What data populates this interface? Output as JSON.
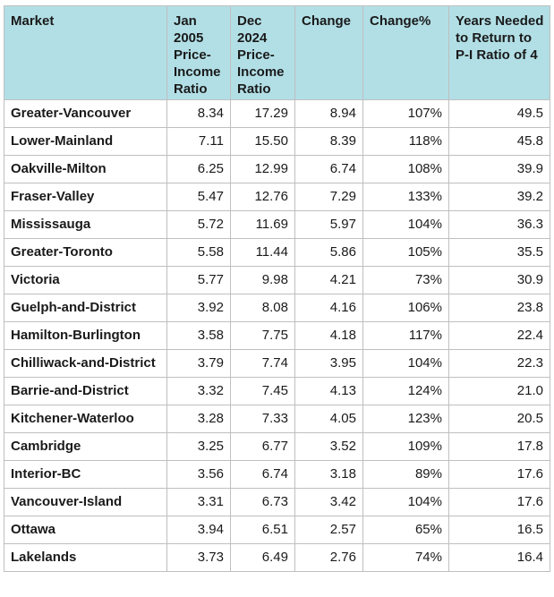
{
  "headers": {
    "market": "Market",
    "jan2005": "Jan 2005 Price-Income Ratio",
    "dec2024": "Dec 2024 Price-Income Ratio",
    "change": "Change",
    "change_pct": "Change%",
    "years": "Years Needed to Return to P-I Ratio of 4"
  },
  "rows": [
    {
      "market": "Greater-Vancouver",
      "jan2005": "8.34",
      "dec2024": "17.29",
      "change": "8.94",
      "change_pct": "107%",
      "years": "49.5"
    },
    {
      "market": "Lower-Mainland",
      "jan2005": "7.11",
      "dec2024": "15.50",
      "change": "8.39",
      "change_pct": "118%",
      "years": "45.8"
    },
    {
      "market": "Oakville-Milton",
      "jan2005": "6.25",
      "dec2024": "12.99",
      "change": "6.74",
      "change_pct": "108%",
      "years": "39.9"
    },
    {
      "market": "Fraser-Valley",
      "jan2005": "5.47",
      "dec2024": "12.76",
      "change": "7.29",
      "change_pct": "133%",
      "years": "39.2"
    },
    {
      "market": "Mississauga",
      "jan2005": "5.72",
      "dec2024": "11.69",
      "change": "5.97",
      "change_pct": "104%",
      "years": "36.3"
    },
    {
      "market": "Greater-Toronto",
      "jan2005": "5.58",
      "dec2024": "11.44",
      "change": "5.86",
      "change_pct": "105%",
      "years": "35.5"
    },
    {
      "market": "Victoria",
      "jan2005": "5.77",
      "dec2024": "9.98",
      "change": "4.21",
      "change_pct": "73%",
      "years": "30.9"
    },
    {
      "market": "Guelph-and-District",
      "jan2005": "3.92",
      "dec2024": "8.08",
      "change": "4.16",
      "change_pct": "106%",
      "years": "23.8"
    },
    {
      "market": "Hamilton-Burlington",
      "jan2005": "3.58",
      "dec2024": "7.75",
      "change": "4.18",
      "change_pct": "117%",
      "years": "22.4"
    },
    {
      "market": "Chilliwack-and-District",
      "jan2005": "3.79",
      "dec2024": "7.74",
      "change": "3.95",
      "change_pct": "104%",
      "years": "22.3"
    },
    {
      "market": "Barrie-and-District",
      "jan2005": "3.32",
      "dec2024": "7.45",
      "change": "4.13",
      "change_pct": "124%",
      "years": "21.0"
    },
    {
      "market": "Kitchener-Waterloo",
      "jan2005": "3.28",
      "dec2024": "7.33",
      "change": "4.05",
      "change_pct": "123%",
      "years": "20.5"
    },
    {
      "market": "Cambridge",
      "jan2005": "3.25",
      "dec2024": "6.77",
      "change": "3.52",
      "change_pct": "109%",
      "years": "17.8"
    },
    {
      "market": "Interior-BC",
      "jan2005": "3.56",
      "dec2024": "6.74",
      "change": "3.18",
      "change_pct": "89%",
      "years": "17.6"
    },
    {
      "market": "Vancouver-Island",
      "jan2005": "3.31",
      "dec2024": "6.73",
      "change": "3.42",
      "change_pct": "104%",
      "years": "17.6"
    },
    {
      "market": "Ottawa",
      "jan2005": "3.94",
      "dec2024": "6.51",
      "change": "2.57",
      "change_pct": "65%",
      "years": "16.5"
    },
    {
      "market": "Lakelands",
      "jan2005": "3.73",
      "dec2024": "6.49",
      "change": "2.76",
      "change_pct": "74%",
      "years": "16.4"
    }
  ]
}
